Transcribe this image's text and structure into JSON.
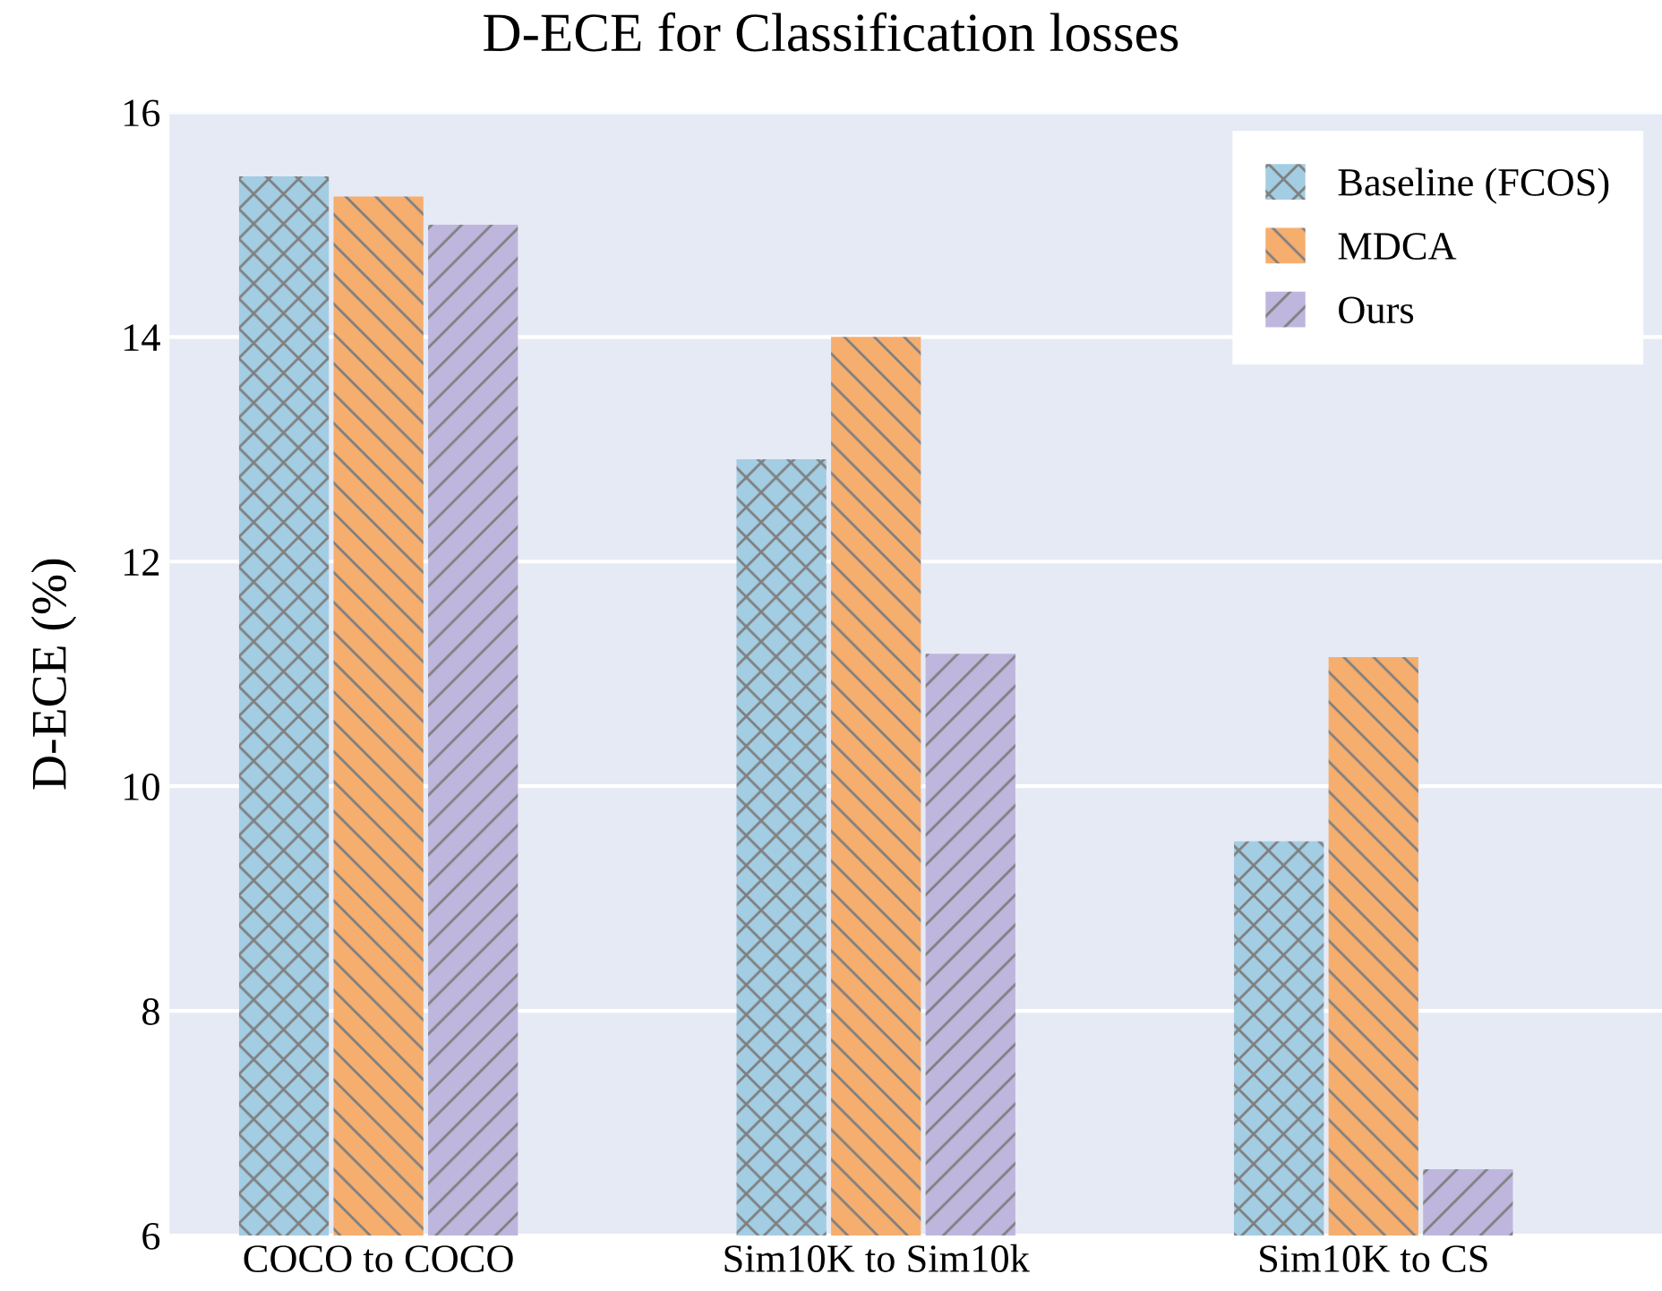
{
  "chart_data": {
    "type": "bar",
    "title": "D-ECE for Classification losses",
    "ylabel": "D-ECE (%)",
    "categories": [
      "COCO to COCO",
      "Sim10K to Sim10k",
      "Sim10K to CS"
    ],
    "series": [
      {
        "name": "Baseline (FCOS)",
        "color": "#a3cde3",
        "values": [
          15.43,
          12.91,
          9.51
        ]
      },
      {
        "name": "MDCA",
        "color": "#f6ae6f",
        "values": [
          15.25,
          14.0,
          11.15
        ]
      },
      {
        "name": "Ours",
        "color": "#bfb6de",
        "values": [
          15.0,
          11.18,
          6.59
        ]
      }
    ],
    "ylim": [
      6,
      16
    ],
    "yticks": [
      6,
      8,
      10,
      12,
      14,
      16
    ],
    "grid": "y",
    "legend": "top right"
  }
}
